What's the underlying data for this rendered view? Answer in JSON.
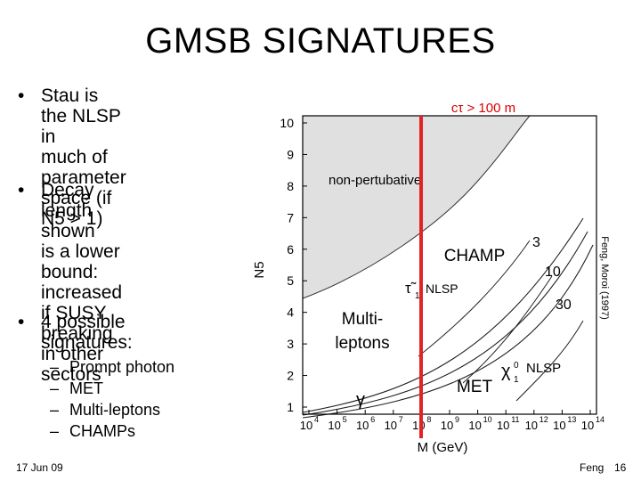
{
  "slide": {
    "title": "GMSB SIGNATURES",
    "footer_date": "17 Jun 09",
    "footer_author": "Feng",
    "page_number": "16"
  },
  "bullets": [
    {
      "lines": [
        "Stau is the NLSP in",
        "much of parameter",
        "space (if N5 > 1)"
      ]
    },
    {
      "lines": [
        "Decay length shown",
        "is a lower bound:",
        "increased if SUSY",
        "breaking in other",
        "sectors"
      ]
    },
    {
      "lines": [
        "4 possible",
        "signatures:"
      ]
    }
  ],
  "sub_bullets": [
    "Prompt photon",
    "MET",
    "Multi-leptons",
    "CHAMPs"
  ],
  "figure": {
    "ylabel": "N5",
    "xlabel": "M (GeV)",
    "y_ticks": [
      "1",
      "2",
      "3",
      "4",
      "5",
      "6",
      "7",
      "8",
      "9",
      "10"
    ],
    "x_tick_exponents": [
      "4",
      "5",
      "6",
      "7",
      "8",
      "9",
      "10",
      "11",
      "12",
      "13",
      "14"
    ],
    "region_nonpert": "non-pertubative",
    "label_stau": "τ̃",
    "label_stau_sub": "1",
    "label_stau_nlsp": "NLSP",
    "label_chi": "χ",
    "label_chi_sup": "0",
    "label_chi_sub": "1",
    "label_chi_nlsp": "NLSP",
    "contour_labels": [
      "3",
      "10",
      "30"
    ],
    "citation": "Feng, Moroi (1997)",
    "line_label": "cτ > 100 m",
    "overlay_champ": "CHAMP",
    "overlay_multi_1": "Multi-",
    "overlay_multi_2": "leptons",
    "overlay_gamma": "γ",
    "overlay_met": "MET",
    "colors": {
      "nonpert_fill": "#e0e0e0",
      "red_line": "#e52222",
      "red_text": "#dd0000"
    }
  }
}
